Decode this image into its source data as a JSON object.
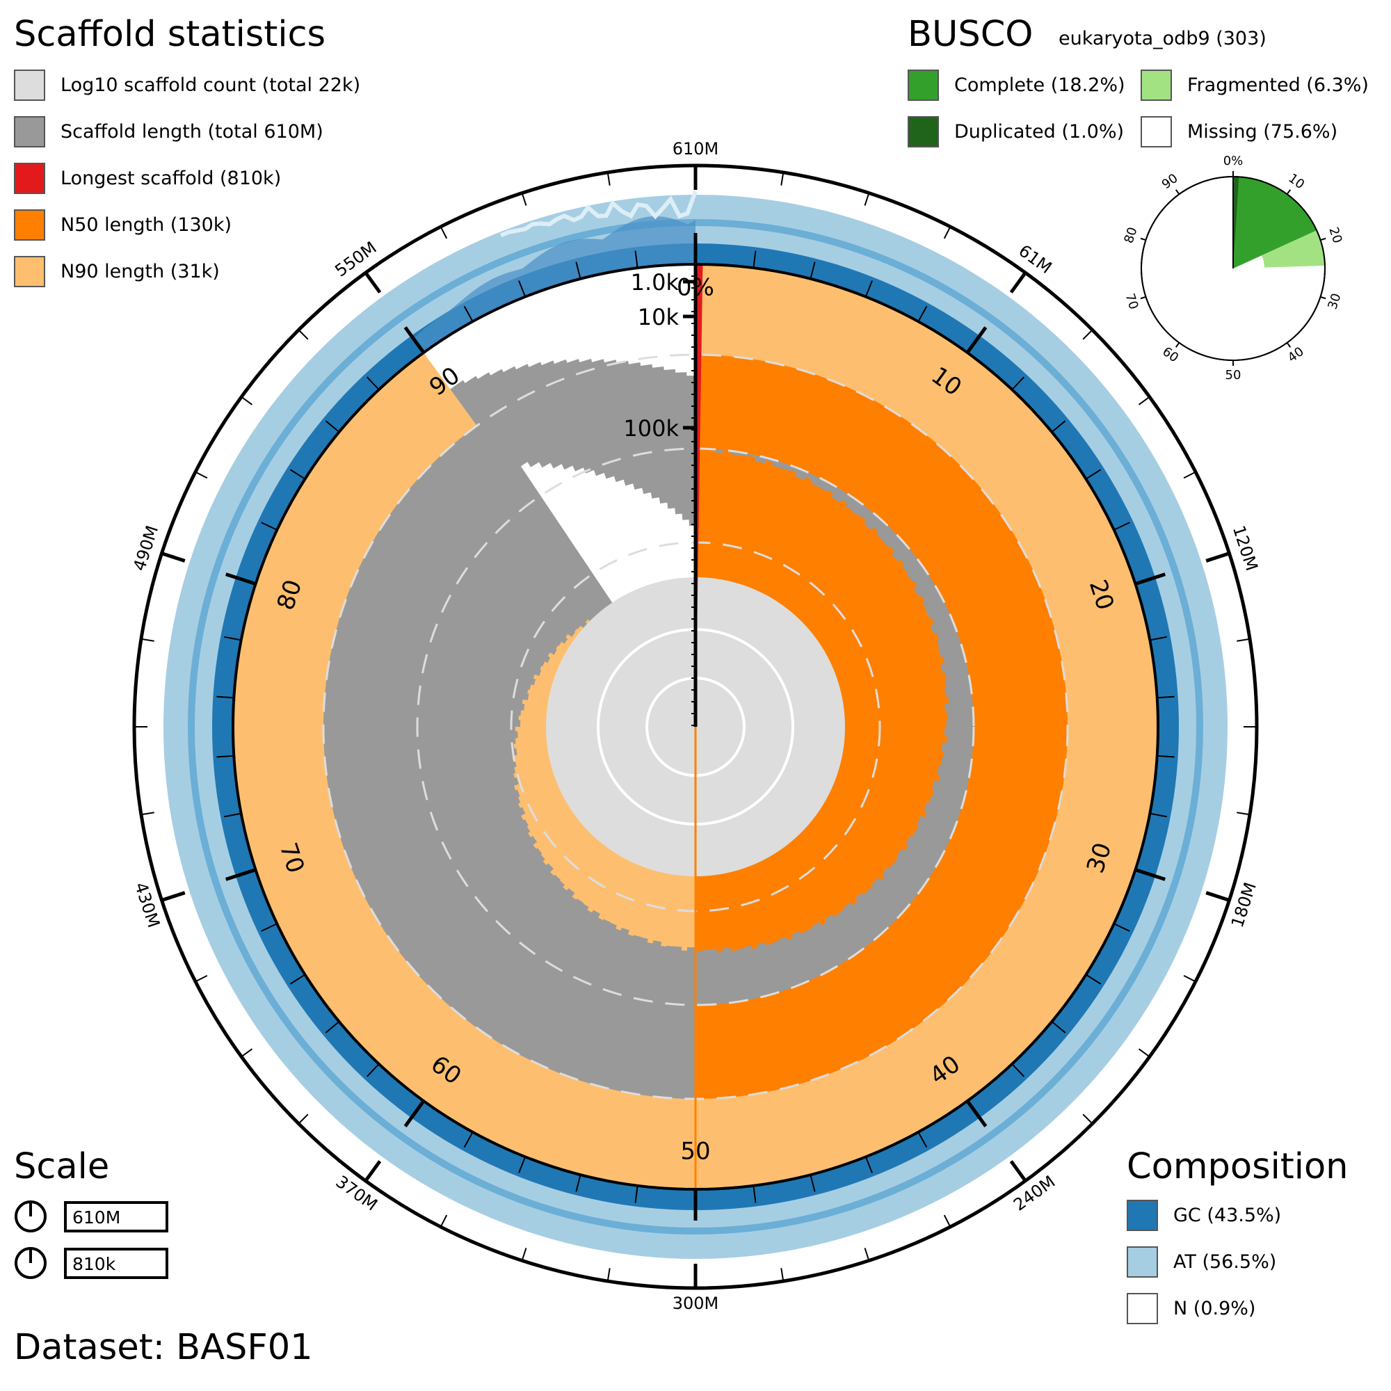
{
  "dataset_label": "Dataset: BASF01",
  "scaffold_stats": {
    "title": "Scaffold statistics",
    "legend": [
      {
        "label": "Log10 scaffold count (total 22k)",
        "color": "#dddddd"
      },
      {
        "label": "Scaffold length (total 610M)",
        "color": "#999999"
      },
      {
        "label": "Longest scaffold (810k)",
        "color": "#e31a1c"
      },
      {
        "label": "N50 length (130k)",
        "color": "#ff7f00"
      },
      {
        "label": "N90 length (31k)",
        "color": "#fdbf6f"
      }
    ]
  },
  "busco": {
    "title": "BUSCO",
    "lineage": "eukaryota_odb9 (303)",
    "legend": [
      {
        "label": "Complete (18.2%)",
        "color": "#33a02c"
      },
      {
        "label": "Fragmented (6.3%)",
        "color": "#a3e283"
      },
      {
        "label": "Duplicated (1.0%)",
        "color": "#20641c"
      },
      {
        "label": "Missing (75.6%)",
        "color": "#ffffff"
      }
    ]
  },
  "scale": {
    "title": "Scale",
    "items": [
      "610M",
      "810k"
    ]
  },
  "composition": {
    "title": "Composition",
    "legend": [
      {
        "label": "GC (43.5%)",
        "color": "#1f78b4"
      },
      {
        "label": "AT (56.5%)",
        "color": "#a6cee3"
      },
      {
        "label": "N (0.9%)",
        "color": "#ffffff"
      }
    ]
  },
  "chart_data": {
    "type": "snail",
    "total_length": "610M",
    "scaffold_count": "22k",
    "longest_scaffold": "810k",
    "n50": "130k",
    "n90": "31k",
    "n50_percent": 50,
    "n90_percent": 90,
    "gc_percent": 43.5,
    "at_percent": 56.5,
    "n_percent": 0.9,
    "outer_axis_labels": [
      {
        "label": "610M",
        "pct": 0
      },
      {
        "label": "61M",
        "pct": 10
      },
      {
        "label": "120M",
        "pct": 20
      },
      {
        "label": "180M",
        "pct": 30
      },
      {
        "label": "240M",
        "pct": 40
      },
      {
        "label": "300M",
        "pct": 50
      },
      {
        "label": "370M",
        "pct": 60
      },
      {
        "label": "430M",
        "pct": 70
      },
      {
        "label": "490M",
        "pct": 80
      },
      {
        "label": "550M",
        "pct": 90
      }
    ],
    "inner_percent_labels": [
      "0%",
      "10",
      "20",
      "30",
      "40",
      "50",
      "60",
      "70",
      "80",
      "90"
    ],
    "radial_scale_labels": [
      "1.0k",
      "10k",
      "100k"
    ],
    "busco_mini_labels": [
      "0%",
      "10",
      "20",
      "30",
      "40",
      "50",
      "60",
      "70",
      "80",
      "90"
    ],
    "busco_values": {
      "duplicated": 1.0,
      "complete": 18.2,
      "fragmented": 6.3,
      "missing": 75.6
    }
  }
}
